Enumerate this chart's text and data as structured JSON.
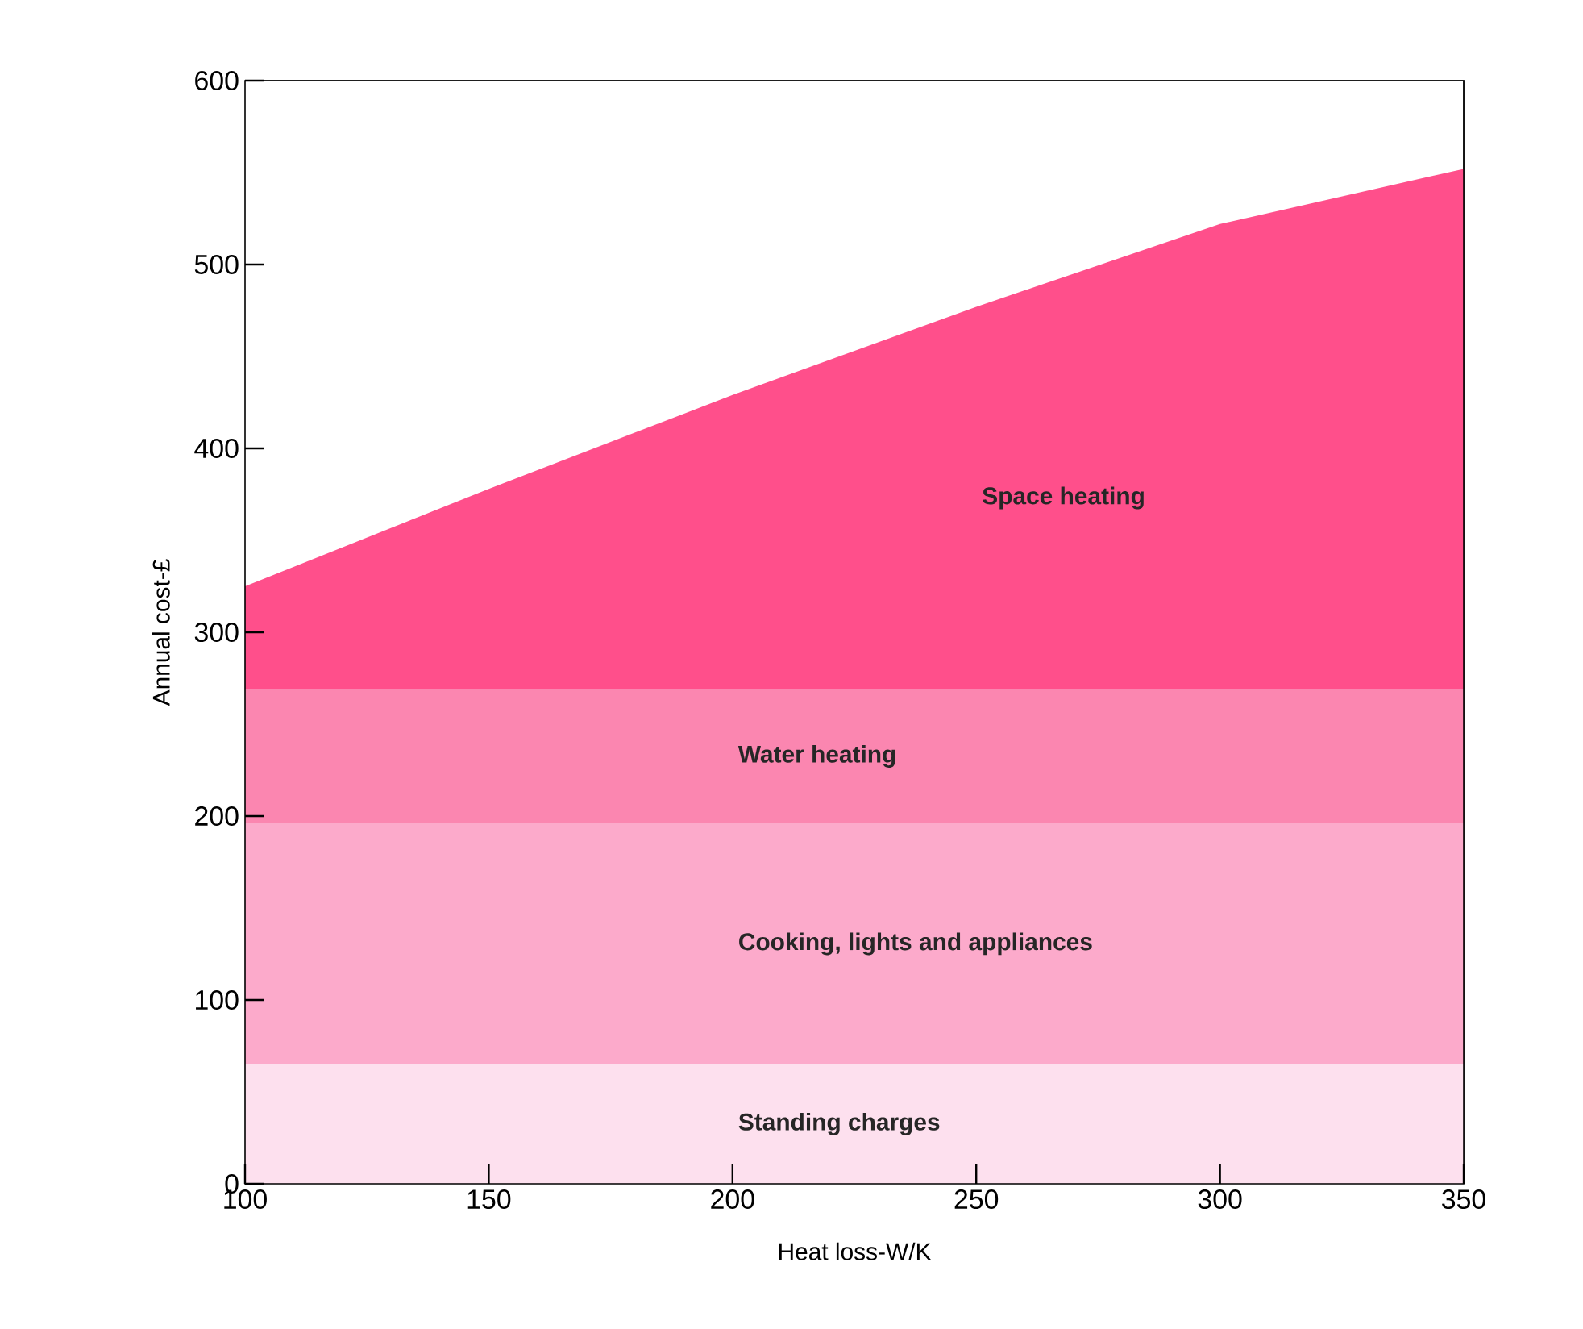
{
  "chart_data": {
    "type": "area",
    "stacked": true,
    "xlabel": "Heat loss-W/K",
    "ylabel": "Annual cost-£",
    "x": [
      100,
      150,
      200,
      250,
      300,
      350
    ],
    "xlim": [
      100,
      350
    ],
    "ylim": [
      0,
      600
    ],
    "xticks": [
      100,
      150,
      200,
      250,
      300,
      350
    ],
    "yticks": [
      0,
      100,
      200,
      300,
      400,
      500,
      600
    ],
    "grid": false,
    "legend": false,
    "series": [
      {
        "name": "Standing charges",
        "color": "#fde0ee",
        "values": [
          65,
          65,
          65,
          65,
          65,
          65
        ]
      },
      {
        "name": "Cooking, lights and appliances",
        "color": "#fcaacb",
        "values": [
          131,
          131,
          131,
          131,
          131,
          131
        ]
      },
      {
        "name": "Water heating",
        "color": "#fb86b0",
        "values": [
          73,
          73,
          73,
          73,
          73,
          73
        ]
      },
      {
        "name": "Space heating",
        "color": "#ff4f8b",
        "values": [
          56,
          109,
          160,
          208,
          253,
          283
        ]
      }
    ]
  }
}
